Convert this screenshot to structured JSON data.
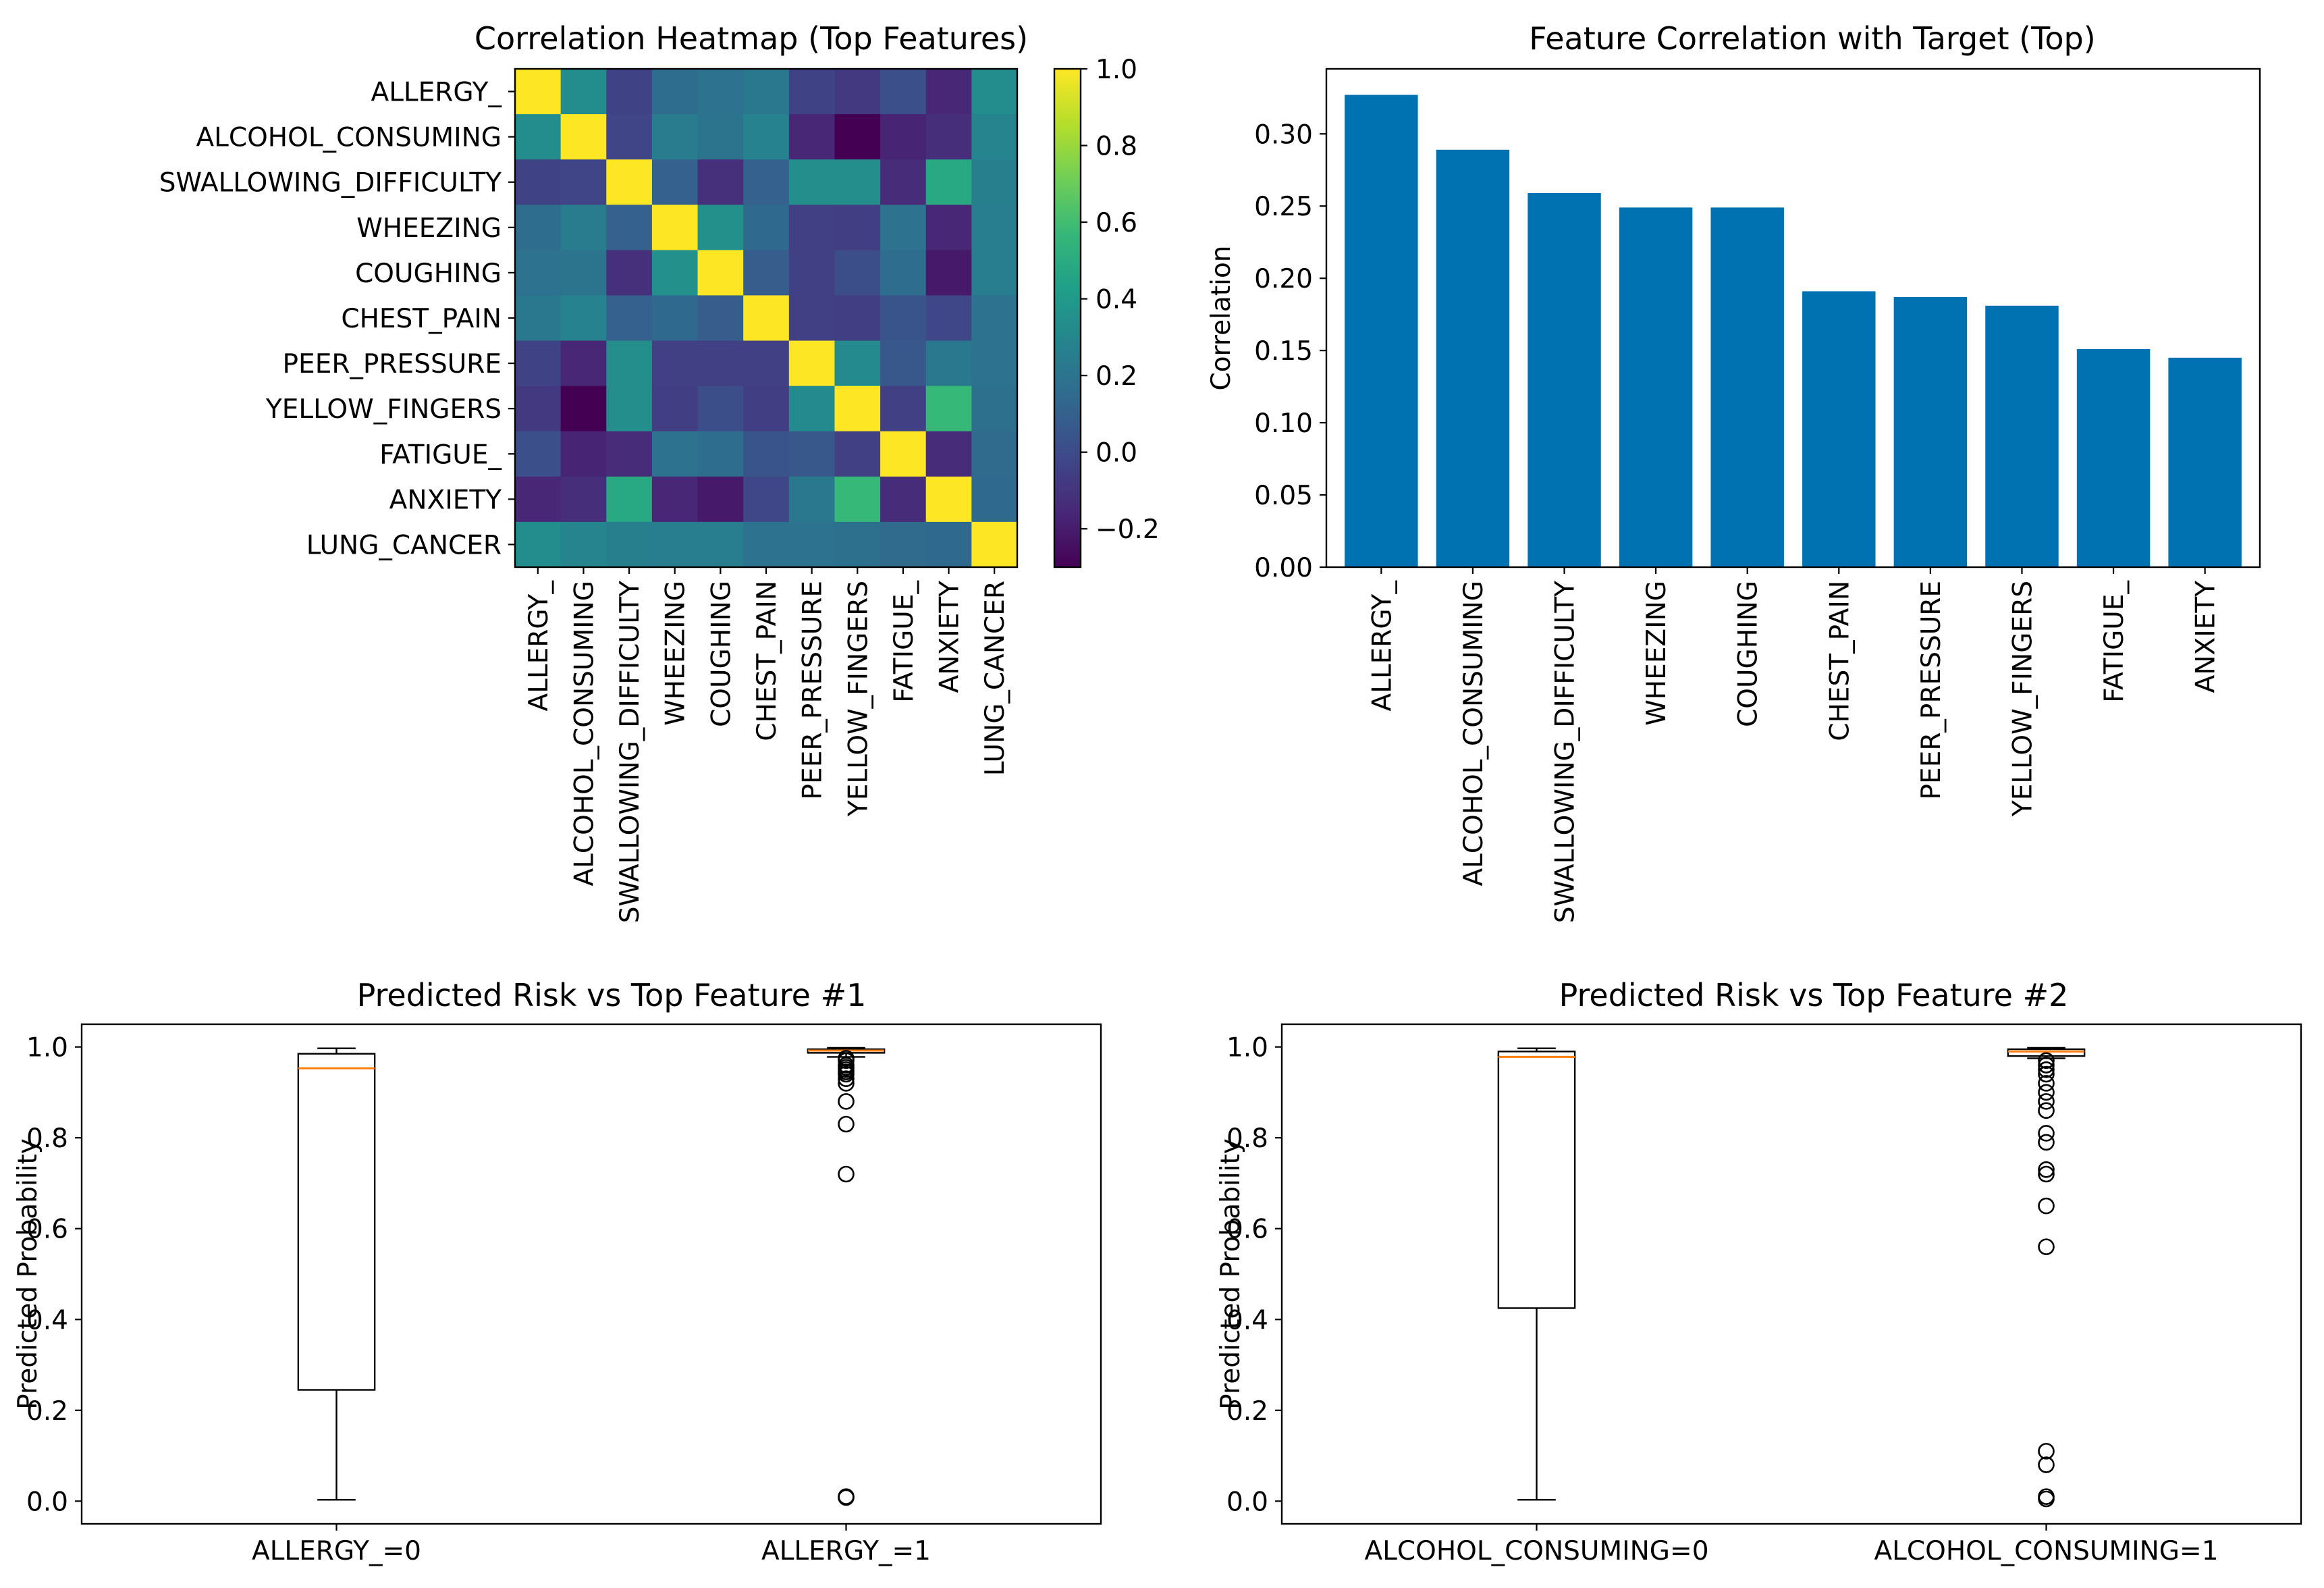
{
  "colors": {
    "bar": "#0072B2",
    "median": "#ff7f0e",
    "viridis": [
      "#440154",
      "#482878",
      "#3e4989",
      "#31688e",
      "#26828e",
      "#1f9e89",
      "#35b779",
      "#6ece58",
      "#b5de2b",
      "#fde725"
    ]
  },
  "chart_data": [
    {
      "type": "heatmap",
      "title": "Correlation Heatmap (Top Features)",
      "labels": [
        "ALLERGY_",
        "ALCOHOL_CONSUMING",
        "SWALLOWING_DIFFICULTY",
        "WHEEZING",
        "COUGHING",
        "CHEST_PAIN",
        "PEER_PRESSURE",
        "YELLOW_FINGERS",
        "FATIGUE_",
        "ANXIETY",
        "LUNG_CANCER"
      ],
      "matrix": [
        [
          1.0,
          0.33,
          -0.04,
          0.16,
          0.19,
          0.22,
          -0.04,
          -0.08,
          0.02,
          -0.16,
          0.33
        ],
        [
          0.33,
          1.0,
          -0.03,
          0.24,
          0.2,
          0.28,
          -0.16,
          -0.3,
          -0.17,
          -0.13,
          0.29
        ],
        [
          -0.04,
          -0.03,
          1.0,
          0.1,
          -0.12,
          0.1,
          0.34,
          0.34,
          -0.14,
          0.48,
          0.26
        ],
        [
          0.16,
          0.24,
          0.1,
          1.0,
          0.35,
          0.14,
          -0.05,
          -0.06,
          0.19,
          -0.16,
          0.25
        ],
        [
          0.19,
          0.2,
          -0.12,
          0.35,
          1.0,
          0.08,
          -0.05,
          0.01,
          0.16,
          -0.21,
          0.25
        ],
        [
          0.22,
          0.28,
          0.1,
          0.14,
          0.08,
          1.0,
          -0.05,
          -0.06,
          0.04,
          -0.02,
          0.19
        ],
        [
          -0.04,
          -0.16,
          0.34,
          -0.05,
          -0.05,
          -0.05,
          1.0,
          0.32,
          0.06,
          0.22,
          0.19
        ],
        [
          -0.08,
          -0.3,
          0.34,
          -0.06,
          0.01,
          -0.06,
          0.32,
          1.0,
          -0.05,
          0.57,
          0.18
        ],
        [
          0.02,
          -0.17,
          -0.14,
          0.19,
          0.16,
          0.04,
          0.06,
          -0.05,
          1.0,
          -0.14,
          0.15
        ],
        [
          -0.16,
          -0.13,
          0.48,
          -0.16,
          -0.21,
          -0.02,
          0.22,
          0.57,
          -0.14,
          1.0,
          0.14
        ],
        [
          0.33,
          0.29,
          0.26,
          0.25,
          0.25,
          0.19,
          0.19,
          0.18,
          0.15,
          0.14,
          1.0
        ]
      ],
      "colorbar": {
        "range": [
          -0.3,
          1.0
        ],
        "ticks": [
          -0.2,
          0.0,
          0.2,
          0.4,
          0.6,
          0.8,
          1.0
        ],
        "tick_labels": [
          "−0.2",
          "0.0",
          "0.2",
          "0.4",
          "0.6",
          "0.8",
          "1.0"
        ],
        "colormap": "viridis"
      }
    },
    {
      "type": "bar",
      "title": "Feature Correlation with Target (Top)",
      "categories": [
        "ALLERGY_",
        "ALCOHOL_CONSUMING",
        "SWALLOWING_DIFFICULTY",
        "WHEEZING",
        "COUGHING",
        "CHEST_PAIN",
        "PEER_PRESSURE",
        "YELLOW_FINGERS",
        "FATIGUE_",
        "ANXIETY"
      ],
      "values": [
        0.327,
        0.289,
        0.259,
        0.249,
        0.249,
        0.191,
        0.187,
        0.181,
        0.151,
        0.145
      ],
      "ylabel": "Correlation",
      "xlabel": "",
      "ylim": [
        0,
        0.345
      ],
      "yticks": [
        0.0,
        0.05,
        0.1,
        0.15,
        0.2,
        0.25,
        0.3
      ],
      "ytick_labels": [
        "0.00",
        "0.05",
        "0.10",
        "0.15",
        "0.20",
        "0.25",
        "0.30"
      ]
    },
    {
      "type": "box",
      "title": "Predicted Risk vs Top Feature #1",
      "ylabel": "Predicted Probability",
      "ylim": [
        -0.05,
        1.05
      ],
      "yticks": [
        0.0,
        0.2,
        0.4,
        0.6,
        0.8,
        1.0
      ],
      "ytick_labels": [
        "0.0",
        "0.2",
        "0.4",
        "0.6",
        "0.8",
        "1.0"
      ],
      "categories": [
        "ALLERGY_=0",
        "ALLERGY_=1"
      ],
      "boxes": [
        {
          "whisker_low": 0.003,
          "q1": 0.245,
          "median": 0.953,
          "q3": 0.985,
          "whisker_high": 0.997,
          "outliers": []
        },
        {
          "whisker_low": 0.978,
          "q1": 0.987,
          "median": 0.992,
          "q3": 0.995,
          "whisker_high": 0.998,
          "outliers": [
            0.975,
            0.97,
            0.96,
            0.955,
            0.95,
            0.945,
            0.94,
            0.93,
            0.92,
            0.88,
            0.83,
            0.72,
            0.01,
            0.008
          ]
        }
      ]
    },
    {
      "type": "box",
      "title": "Predicted Risk vs Top Feature #2",
      "ylabel": "Predicted Probability",
      "ylim": [
        -0.05,
        1.05
      ],
      "yticks": [
        0.0,
        0.2,
        0.4,
        0.6,
        0.8,
        1.0
      ],
      "ytick_labels": [
        "0.0",
        "0.2",
        "0.4",
        "0.6",
        "0.8",
        "1.0"
      ],
      "categories": [
        "ALCOHOL_CONSUMING=0",
        "ALCOHOL_CONSUMING=1"
      ],
      "boxes": [
        {
          "whisker_low": 0.003,
          "q1": 0.425,
          "median": 0.978,
          "q3": 0.99,
          "whisker_high": 0.997,
          "outliers": []
        },
        {
          "whisker_low": 0.975,
          "q1": 0.98,
          "median": 0.99,
          "q3": 0.995,
          "whisker_high": 0.998,
          "outliers": [
            0.97,
            0.96,
            0.95,
            0.94,
            0.92,
            0.9,
            0.88,
            0.86,
            0.81,
            0.79,
            0.73,
            0.72,
            0.65,
            0.56,
            0.11,
            0.08,
            0.01,
            0.005
          ]
        }
      ]
    }
  ]
}
